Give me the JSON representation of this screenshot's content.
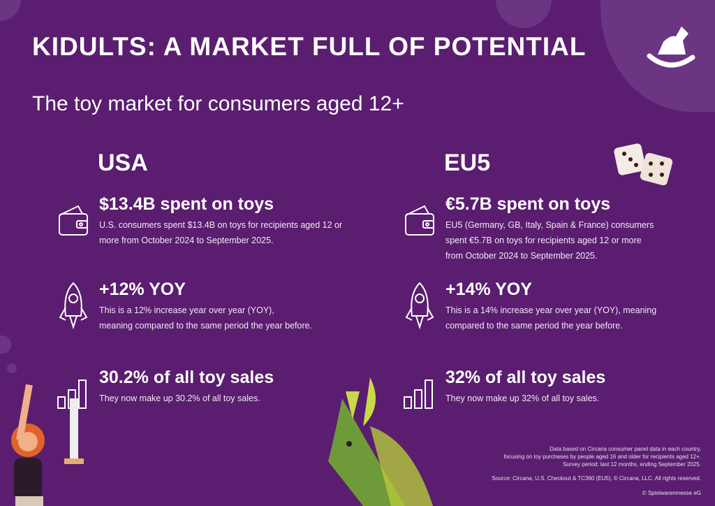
{
  "title": "KIDULTS: A MARKET FULL OF POTENTIAL",
  "subtitle": "The toy market for consumers aged 12+",
  "colors": {
    "background": "#5a1d6f",
    "text": "#ffffff"
  },
  "regions": [
    {
      "name": "USA",
      "stats": [
        {
          "icon": "wallet-icon",
          "heading": "$13.4B spent on toys",
          "lines": [
            "U.S. consumers spent $13.4B on toys for recipients aged 12 or",
            "more from October 2024 to September 2025."
          ]
        },
        {
          "icon": "rocket-icon",
          "heading": "+12% YOY",
          "lines": [
            "This is a 12% increase year over year (YOY),",
            "meaning compared to the same period the year before."
          ]
        },
        {
          "icon": "bar-chart-icon",
          "heading": "30.2% of all toy sales",
          "lines": [
            "They now make up 30.2% of all toy sales."
          ]
        }
      ]
    },
    {
      "name": "EU5",
      "stats": [
        {
          "icon": "wallet-icon",
          "heading": "€5.7B spent on toys",
          "lines": [
            "EU5 (Germany, GB, Italy, Spain & France) consumers",
            " spent €5.7B on toys for recipients aged 12 or more",
            "from October 2024 to September 2025."
          ]
        },
        {
          "icon": "rocket-icon",
          "heading": "+14% YOY",
          "lines": [
            "This is a 14% increase year over year (YOY), meaning",
            "compared to the same period the year before."
          ]
        },
        {
          "icon": "bar-chart-icon",
          "heading": "32% of all toy sales",
          "lines": [
            "They now make up 32% of all toy sales."
          ]
        }
      ]
    }
  ],
  "footnote": [
    "Data based on Circana consumer panel data in each country,",
    "focusing on toy purchases by people aged 16 and older for recipients aged 12+.",
    "Survey period: last 12 months, ending September 2025."
  ],
  "source": "Source: Circana, U.S. Checkout & TC360 (EU5), © Circana, LLC. All rights reserved.",
  "copyright": "© Spielwarenmesse eG"
}
